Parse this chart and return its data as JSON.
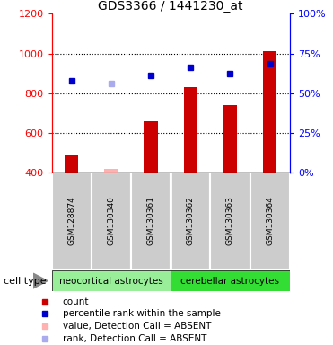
{
  "title": "GDS3366 / 1441230_at",
  "samples": [
    "GSM128874",
    "GSM130340",
    "GSM130361",
    "GSM130362",
    "GSM130363",
    "GSM130364"
  ],
  "bar_values": [
    490,
    420,
    660,
    830,
    740,
    1010
  ],
  "bar_colors": [
    "#cc0000",
    "#ffb0b0",
    "#cc0000",
    "#cc0000",
    "#cc0000",
    "#cc0000"
  ],
  "percentile_values": [
    57.5,
    56.25,
    61.25,
    66.25,
    62.5,
    68.75
  ],
  "percentile_colors": [
    "#0000cc",
    "#aaaaee",
    "#0000cc",
    "#0000cc",
    "#0000cc",
    "#0000cc"
  ],
  "absent_mask": [
    false,
    true,
    false,
    false,
    false,
    false
  ],
  "ylim_left": [
    400,
    1200
  ],
  "ylim_right": [
    0,
    100
  ],
  "yticks_left": [
    400,
    600,
    800,
    1000,
    1200
  ],
  "yticks_right": [
    0,
    25,
    50,
    75,
    100
  ],
  "cell_types": [
    {
      "label": "neocortical astrocytes",
      "color": "#99ee99",
      "count": 3
    },
    {
      "label": "cerebellar astrocytes",
      "color": "#33dd33",
      "count": 3
    }
  ],
  "legend_items": [
    {
      "label": "count",
      "color": "#cc0000"
    },
    {
      "label": "percentile rank within the sample",
      "color": "#0000cc"
    },
    {
      "label": "value, Detection Call = ABSENT",
      "color": "#ffb0b0"
    },
    {
      "label": "rank, Detection Call = ABSENT",
      "color": "#aaaaee"
    }
  ],
  "bg_color": "#ffffff",
  "bar_bottom": 400,
  "sample_bg_color": "#cccccc",
  "cell_type_label": "cell type"
}
